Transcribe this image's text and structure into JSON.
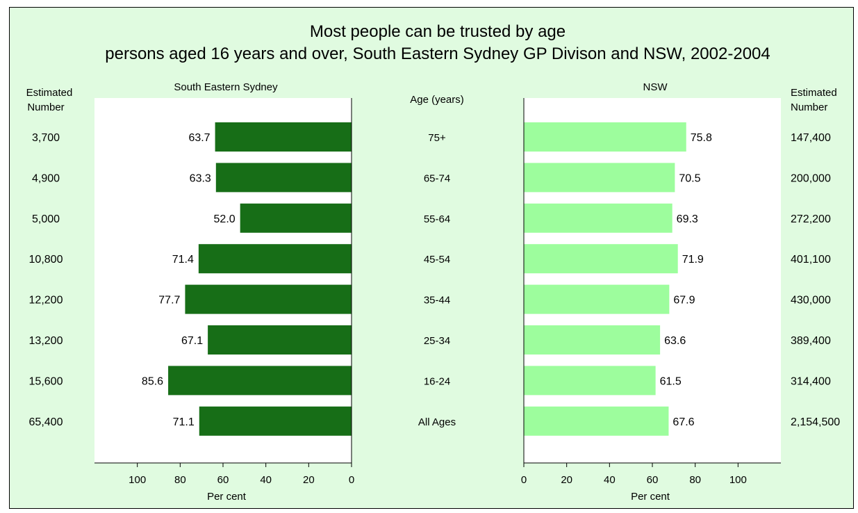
{
  "chart_data": {
    "type": "bar",
    "title": "Most people can be trusted by age",
    "subtitle": "persons aged 16 years and over, South Eastern Sydney GP Divison and NSW, 2002-2004",
    "categories": [
      "75+",
      "65-74",
      "55-64",
      "45-54",
      "35-44",
      "25-34",
      "16-24",
      "All Ages"
    ],
    "category_axis_label": "Age (years)",
    "xlabel": "Per cent",
    "xlim": [
      0,
      120
    ],
    "xticks": [
      0,
      20,
      40,
      60,
      80,
      100
    ],
    "estimated_number_label": [
      "Estimated",
      "Number"
    ],
    "series": [
      {
        "name": "South Eastern Sydney",
        "color": "#176e17",
        "values": [
          63.7,
          63.3,
          52.0,
          71.4,
          77.7,
          67.1,
          85.6,
          71.1
        ],
        "value_labels": [
          "63.7",
          "63.3",
          "52.0",
          "71.4",
          "77.7",
          "67.1",
          "85.6",
          "71.1"
        ],
        "estimated_number": [
          "3,700",
          "4,900",
          "5,000",
          "10,800",
          "12,200",
          "13,200",
          "15,600",
          "65,400"
        ]
      },
      {
        "name": "NSW",
        "color": "#9dfd9d",
        "values": [
          75.8,
          70.5,
          69.3,
          71.9,
          67.9,
          63.6,
          61.5,
          67.6
        ],
        "value_labels": [
          "75.8",
          "70.5",
          "69.3",
          "71.9",
          "67.9",
          "63.6",
          "61.5",
          "67.6"
        ],
        "estimated_number": [
          "147,400",
          "200,000",
          "272,200",
          "401,100",
          "430,000",
          "389,400",
          "314,400",
          "2,154,500"
        ]
      }
    ]
  }
}
